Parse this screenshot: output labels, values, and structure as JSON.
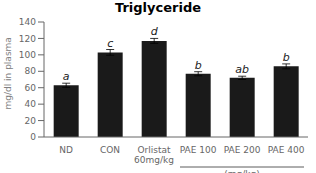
{
  "chart_data": {
    "type": "bar",
    "title": "Triglyceride",
    "ylabel": "mg/dl in plasma",
    "categories": [
      "ND",
      "CON",
      "Orlistat\n60mg/kg",
      "PAE 100",
      "PAE 200",
      "PAE 400"
    ],
    "values": [
      63,
      103,
      117,
      77,
      72,
      86
    ],
    "errors": [
      2.5,
      3.5,
      3.0,
      2.5,
      2.0,
      3.0
    ],
    "letters": [
      "a",
      "c",
      "d",
      "b",
      "ab",
      "b"
    ],
    "group_label": {
      "text": "(mg/kg)",
      "categories": [
        "PAE 100",
        "PAE 200",
        "PAE 400"
      ]
    },
    "color": "#1a1a1a",
    "ylim": [
      0,
      140
    ],
    "yticks": [
      0,
      20,
      40,
      60,
      80,
      100,
      120,
      140
    ],
    "grid": false
  }
}
